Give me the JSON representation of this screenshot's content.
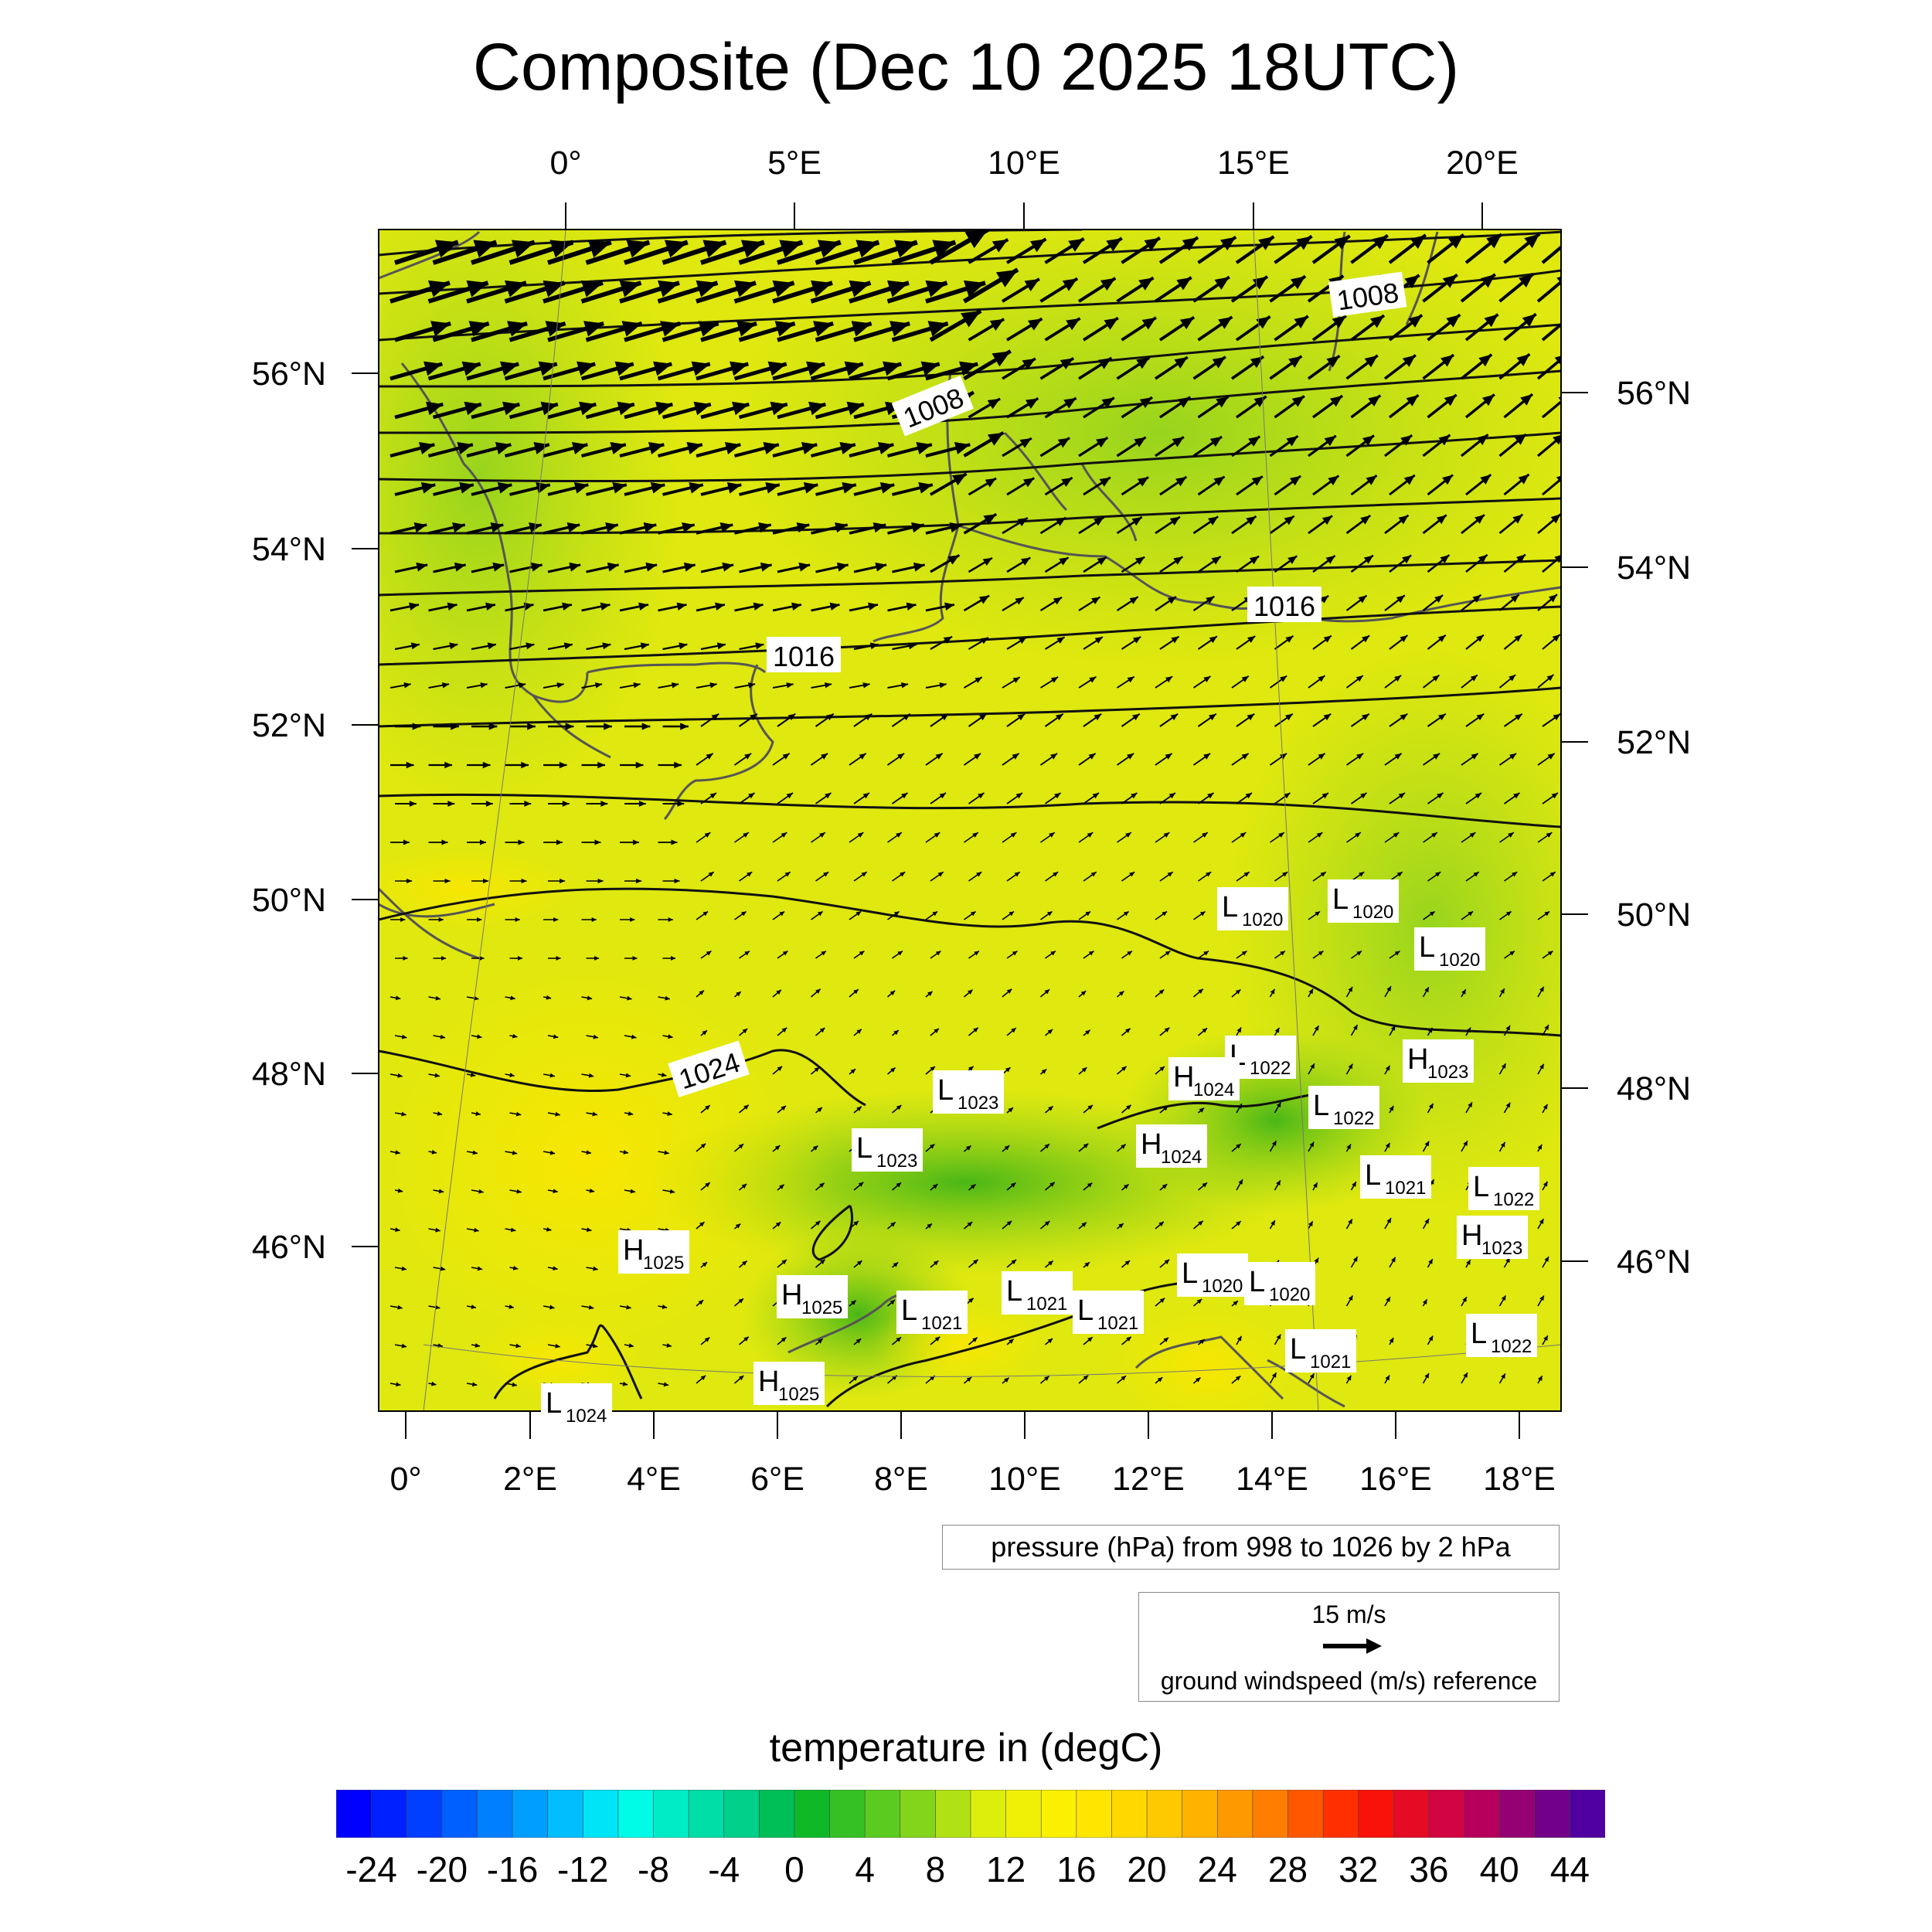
{
  "title": "Composite (Dec 10 2025 18UTC)",
  "top_lon_labels": [
    "0°",
    "5°E",
    "10°E",
    "15°E",
    "20°E"
  ],
  "bottom_lon_labels": [
    "0°",
    "2°E",
    "4°E",
    "6°E",
    "8°E",
    "10°E",
    "12°E",
    "14°E",
    "16°E",
    "18°E"
  ],
  "left_lat_labels": [
    "56°N",
    "54°N",
    "52°N",
    "50°N",
    "48°N",
    "46°N"
  ],
  "right_lat_labels": [
    "56°N",
    "54°N",
    "52°N",
    "50°N",
    "48°N",
    "46°N"
  ],
  "isobar_labels": [
    "1008",
    "1008",
    "1016",
    "1016",
    "1024"
  ],
  "pressure_centers": [
    {
      "type": "L",
      "value": "1020"
    },
    {
      "type": "L",
      "value": "1020"
    },
    {
      "type": "L",
      "value": "1020"
    },
    {
      "type": "L",
      "value": "1022"
    },
    {
      "type": "H",
      "value": "1024"
    },
    {
      "type": "H",
      "value": "1023"
    },
    {
      "type": "L",
      "value": "1023"
    },
    {
      "type": "L",
      "value": "1022"
    },
    {
      "type": "L",
      "value": "1023"
    },
    {
      "type": "H",
      "value": "1024"
    },
    {
      "type": "L",
      "value": "1021"
    },
    {
      "type": "L",
      "value": "1022"
    },
    {
      "type": "H",
      "value": "1025"
    },
    {
      "type": "H",
      "value": "1023"
    },
    {
      "type": "H",
      "value": "1025"
    },
    {
      "type": "L",
      "value": "1021"
    },
    {
      "type": "L",
      "value": "1021"
    },
    {
      "type": "L",
      "value": "1021"
    },
    {
      "type": "L",
      "value": "1020"
    },
    {
      "type": "L",
      "value": "1020"
    },
    {
      "type": "L",
      "value": "1021"
    },
    {
      "type": "L",
      "value": "1022"
    },
    {
      "type": "H",
      "value": "1025"
    },
    {
      "type": "L",
      "value": "1024"
    }
  ],
  "pressure_note": "pressure (hPa) from 998 to 1026 by 2 hPa",
  "wind_reference": {
    "speed": "15 m/s",
    "label": "ground windspeed (m/s) reference"
  },
  "colorbar": {
    "title": "temperature in (degC)",
    "tick_labels": [
      "-24",
      "-20",
      "-16",
      "-12",
      "-8",
      "-4",
      "0",
      "4",
      "8",
      "12",
      "16",
      "20",
      "24",
      "28",
      "32",
      "36",
      "40",
      "44"
    ],
    "min": -26,
    "max": 46,
    "step": 2
  },
  "colors": {
    "field_base": "#e3ec10",
    "field_green": "#63c21b",
    "field_yellow": "#f5ea00",
    "isobar": "#111111",
    "coast": "#555555"
  }
}
